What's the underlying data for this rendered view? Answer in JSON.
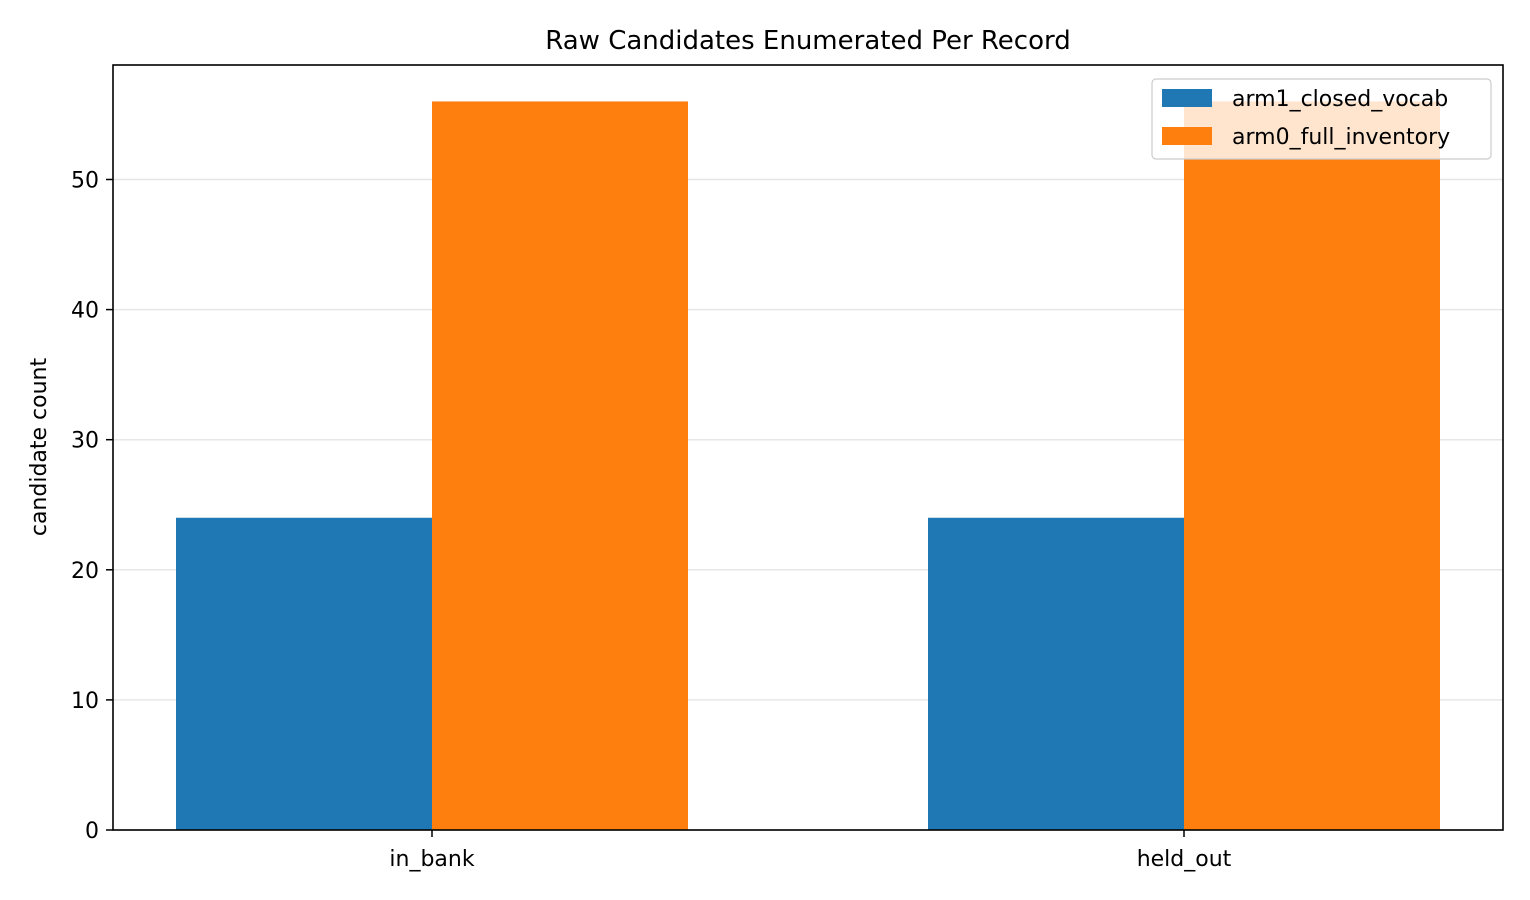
{
  "chart_data": {
    "type": "bar",
    "title": "Raw Candidates Enumerated Per Record",
    "xlabel": "",
    "ylabel": "candidate count",
    "categories": [
      "in_bank",
      "held_out"
    ],
    "series": [
      {
        "name": "arm1_closed_vocab",
        "values": [
          24,
          24
        ],
        "color": "#1f77b4"
      },
      {
        "name": "arm0_full_inventory",
        "values": [
          56,
          56
        ],
        "color": "#ff7f0e"
      }
    ],
    "ylim": [
      0,
      58.8
    ],
    "yticks": [
      0,
      10,
      20,
      30,
      40,
      50
    ],
    "grid": "horizontal",
    "legend_position": "top-right"
  }
}
